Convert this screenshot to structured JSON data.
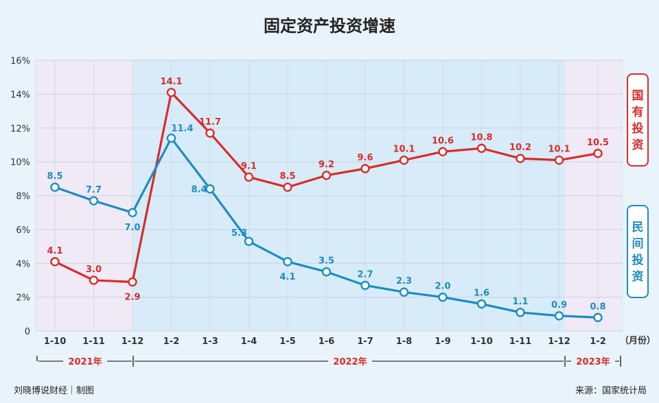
{
  "chart_data": {
    "type": "line",
    "title": "固定资产投资增速",
    "categories": [
      "1-10",
      "1-11",
      "1-12",
      "1-2",
      "1-3",
      "1-4",
      "1-5",
      "1-6",
      "1-7",
      "1-8",
      "1-9",
      "1-10",
      "1-11",
      "1-12",
      "1-2"
    ],
    "x_unit": "（月份）",
    "y_ticks": [
      "16%",
      "14%",
      "12%",
      "10%",
      "8%",
      "6%",
      "4%",
      "2%",
      "0"
    ],
    "ylim": [
      0,
      16
    ],
    "series": [
      {
        "name": "国有投资",
        "color": "#d92b2b",
        "values": [
          4.1,
          3.0,
          2.9,
          14.1,
          11.7,
          9.1,
          8.5,
          9.2,
          9.6,
          10.1,
          10.6,
          10.8,
          10.2,
          10.1,
          10.5
        ]
      },
      {
        "name": "民间投资",
        "color": "#1c8cc1",
        "values": [
          8.5,
          7.7,
          7.0,
          11.4,
          8.4,
          5.3,
          4.1,
          3.5,
          2.7,
          2.3,
          2.0,
          1.6,
          1.1,
          0.9,
          0.8
        ]
      }
    ],
    "red_labels": [
      "4.1",
      "3.0",
      "2.9",
      "14.1",
      "11.7",
      "9.1",
      "8.5",
      "9.2",
      "9.6",
      "10.1",
      "10.6",
      "10.8",
      "10.2",
      "10.1",
      "10.5"
    ],
    "blue_labels": [
      "8.5",
      "7.7",
      "7.0",
      "11.4",
      "8.4",
      "5.3",
      "4.1",
      "3.5",
      "2.7",
      "2.3",
      "2.0",
      "1.6",
      "1.1",
      "0.9",
      "0.8"
    ],
    "years": [
      "2021年",
      "2022年",
      "2023年"
    ],
    "grid": true
  },
  "footer": {
    "left": "刘晓博说财经｜制图",
    "right": "来源：国家统计局"
  }
}
